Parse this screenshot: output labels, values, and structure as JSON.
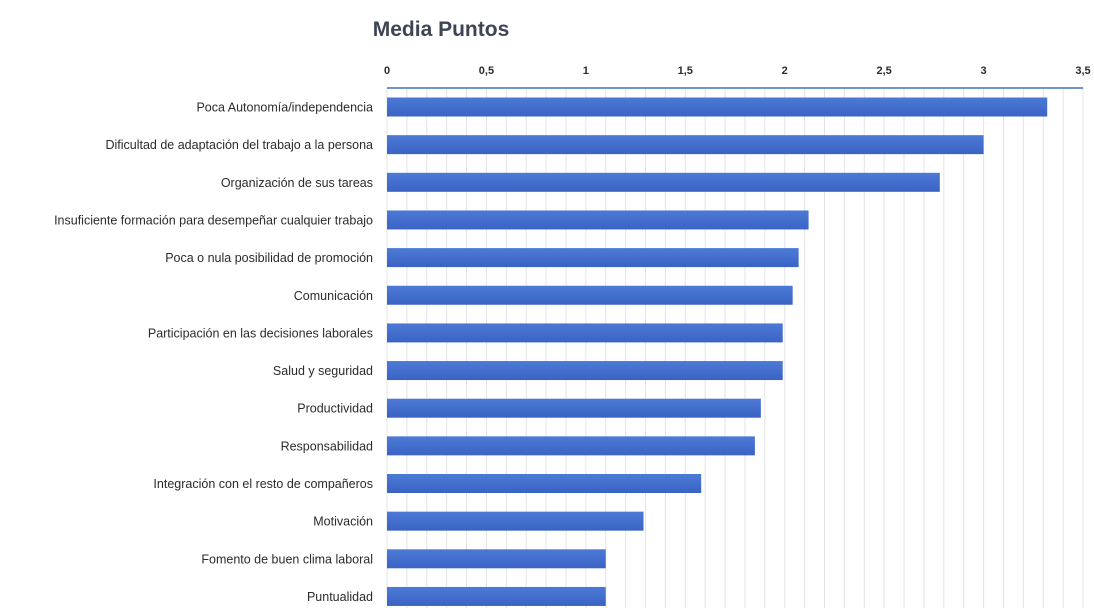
{
  "chart_data": {
    "type": "bar",
    "orientation": "horizontal",
    "title": "Media  Puntos",
    "xlabel": "",
    "ylabel": "",
    "xlim": [
      0,
      3.5
    ],
    "x_ticks": [
      "0",
      "0,5",
      "1",
      "1,5",
      "2",
      "2,5",
      "3",
      "3,5"
    ],
    "x_tick_values": [
      0,
      0.5,
      1,
      1.5,
      2,
      2.5,
      3,
      3.5
    ],
    "axis_position": "top",
    "grid": true,
    "categories": [
      "Poca Autonomía/independencia",
      "Dificultad de adaptación del trabajo a la persona",
      "Organización de sus tareas",
      "Insuficiente formación para desempeñar cualquier trabajo",
      "Poca o nula posibilidad de promoción",
      "Comunicación",
      "Participación en las decisiones laborales",
      "Salud y seguridad",
      "Productividad",
      "Responsabilidad",
      "Integración con el resto de compañeros",
      "Motivación",
      "Fomento de buen clima laboral",
      "Puntualidad"
    ],
    "values": [
      3.32,
      3.0,
      2.78,
      2.12,
      2.07,
      2.04,
      1.99,
      1.99,
      1.88,
      1.85,
      1.58,
      1.29,
      1.1,
      1.1
    ],
    "colors": {
      "bar": "#3a63c4",
      "bar_light": "#4d7ad6",
      "axis": "#4472c4",
      "grid": "#e4e4e4"
    }
  }
}
